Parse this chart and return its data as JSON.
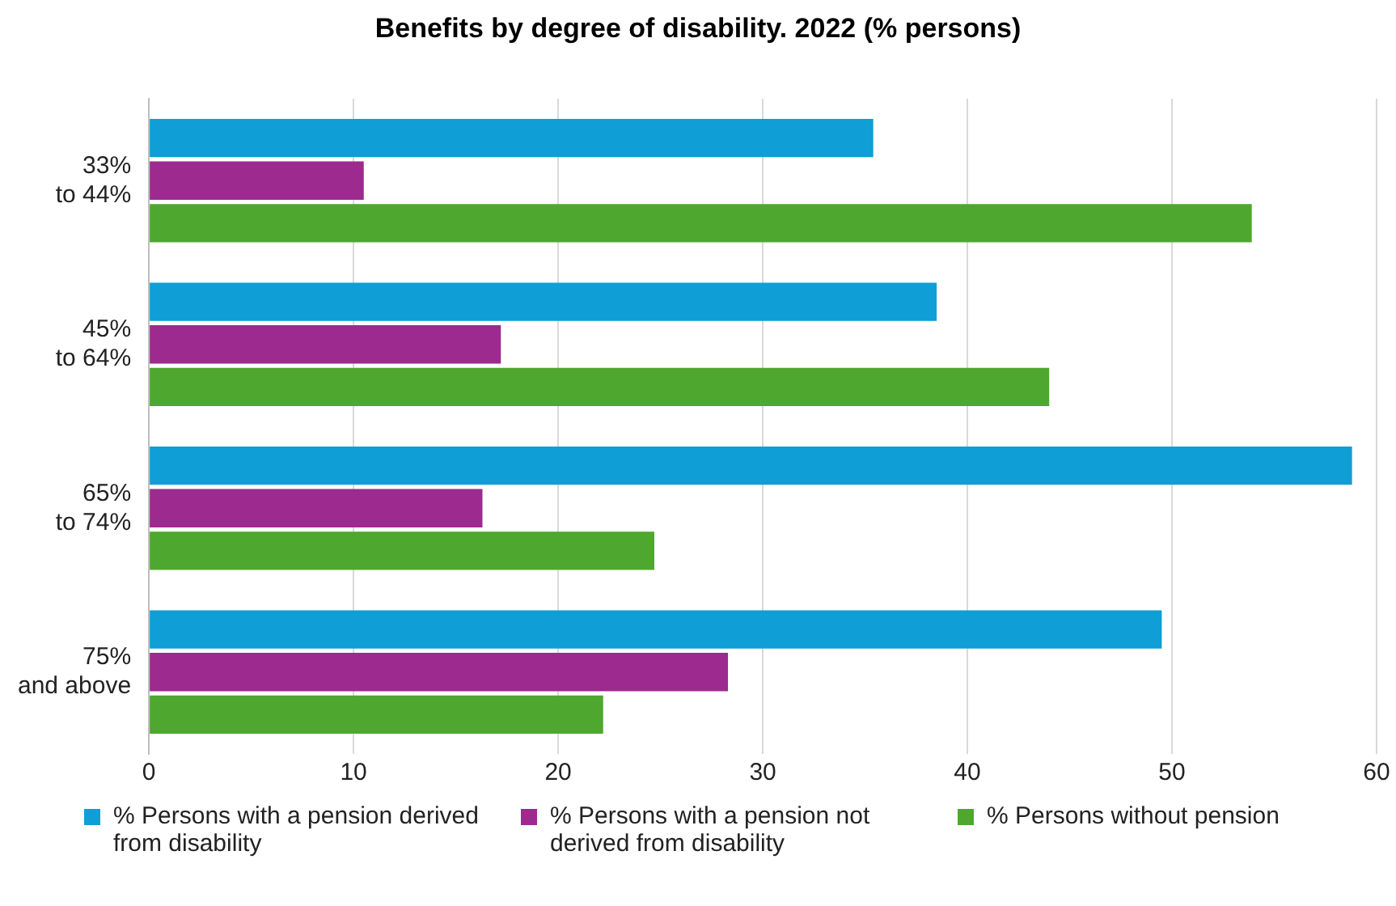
{
  "chart_data": {
    "type": "bar",
    "orientation": "horizontal",
    "title": "Benefits by degree of disability. 2022 (% persons)",
    "categories": [
      "33% to 44%",
      "45% to 64%",
      "65% to 74%",
      "75% and above"
    ],
    "series": [
      {
        "name": "% Persons with a pension derived from disability",
        "color": "#0f9ed5",
        "values": [
          35.4,
          38.5,
          58.8,
          49.5
        ]
      },
      {
        "name": "% Persons with a pension not derived from disability",
        "color": "#9c2a8f",
        "values": [
          10.5,
          17.2,
          16.3,
          28.3
        ]
      },
      {
        "name": "% Persons without pension",
        "color": "#4ea72e",
        "values": [
          53.9,
          44.0,
          24.7,
          22.2
        ]
      }
    ],
    "xlim": [
      0,
      60
    ],
    "xticks": [
      0,
      10,
      20,
      30,
      40,
      50,
      60
    ],
    "grid": "x",
    "legend": "bottom"
  }
}
